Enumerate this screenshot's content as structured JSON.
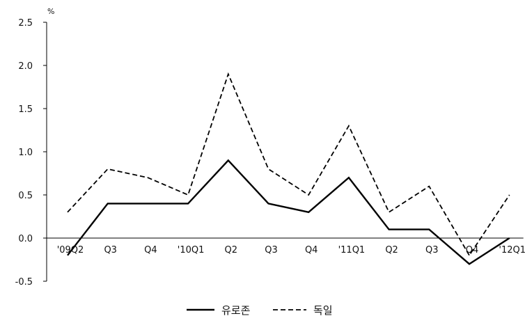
{
  "chart_data": {
    "type": "line",
    "ylabel": "%",
    "ylim": [
      -0.5,
      2.5
    ],
    "yticks": [
      "2.5",
      "2.0",
      "1.5",
      "1.0",
      "0.5",
      "0.0",
      "-0.5"
    ],
    "ytick_values": [
      2.5,
      2.0,
      1.5,
      1.0,
      0.5,
      0.0,
      -0.5
    ],
    "categories": [
      "'09Q2",
      "Q3",
      "Q4",
      "'10Q1",
      "Q2",
      "Q3",
      "Q4",
      "'11Q1",
      "Q2",
      "Q3",
      "Q4",
      "'12Q1"
    ],
    "series": [
      {
        "name": "유로존",
        "style": "solid",
        "color": "#000000",
        "values": [
          -0.2,
          0.4,
          0.4,
          0.4,
          0.9,
          0.4,
          0.3,
          0.7,
          0.1,
          0.1,
          -0.3,
          0.0
        ]
      },
      {
        "name": "독일",
        "style": "dashed",
        "color": "#000000",
        "values": [
          0.3,
          0.8,
          0.7,
          0.5,
          1.9,
          0.8,
          0.5,
          1.3,
          0.3,
          0.6,
          -0.2,
          0.5
        ]
      }
    ],
    "legend_position": "bottom-center",
    "grid": false
  }
}
